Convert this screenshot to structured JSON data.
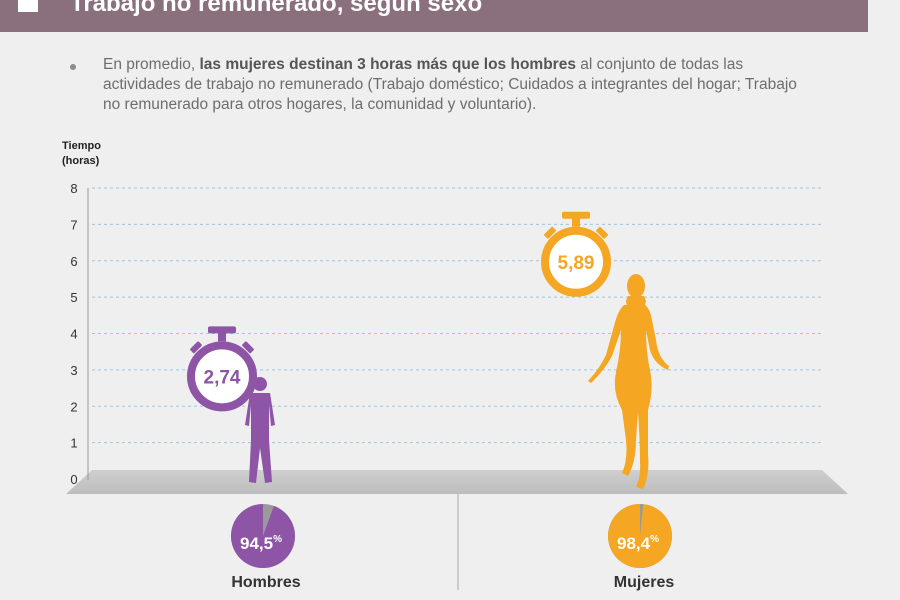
{
  "header": {
    "title": "Trabajo no remunerado, según sexo"
  },
  "note": {
    "prefix": "En promedio, ",
    "bold": "las mujeres destinan 3 horas más que los hombres",
    "suffix": " al conjunto de todas las actividades de trabajo no remunerado (Trabajo doméstico; Cuidados a integrantes del hogar; Trabajo no remunerado para otros hogares, la comunidad y voluntario)."
  },
  "colors": {
    "hombres": "#8e55a6",
    "mujeres": "#f5a623",
    "header": "#8a6f7c"
  },
  "chart_data": {
    "type": "bar",
    "ylabel": "Tiempo (horas)",
    "ylabel_lines": [
      "Tiempo",
      "(horas)"
    ],
    "ylim": [
      0,
      8
    ],
    "yticks": [
      "0",
      "1",
      "2",
      "3",
      "4",
      "5",
      "6",
      "7",
      "8"
    ],
    "grid": true,
    "categories": [
      "Hombres",
      "Mujeres"
    ],
    "values": [
      2.74,
      5.89
    ],
    "value_labels": [
      "2,74",
      "5,89"
    ],
    "participation": [
      94.5,
      98.4
    ],
    "participation_labels": [
      "94,5",
      "98,4"
    ],
    "participation_unit": "%"
  }
}
